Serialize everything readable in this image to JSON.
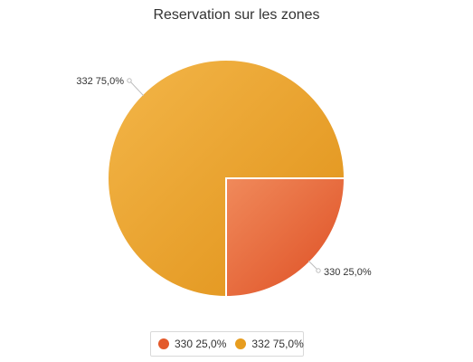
{
  "chart_data": {
    "type": "pie",
    "title": "Reservation sur les zones",
    "slices": [
      {
        "label": "330 25,0%",
        "value": 25.0,
        "color": "#E3592A"
      },
      {
        "label": "332 75,0%",
        "value": 75.0,
        "color": "#E79D1F"
      }
    ],
    "legend_position": "bottom-center"
  },
  "legend": {
    "items": [
      {
        "label": "330 25,0%",
        "color": "#E3592A"
      },
      {
        "label": "332 75,0%",
        "color": "#E79D1F"
      }
    ]
  }
}
